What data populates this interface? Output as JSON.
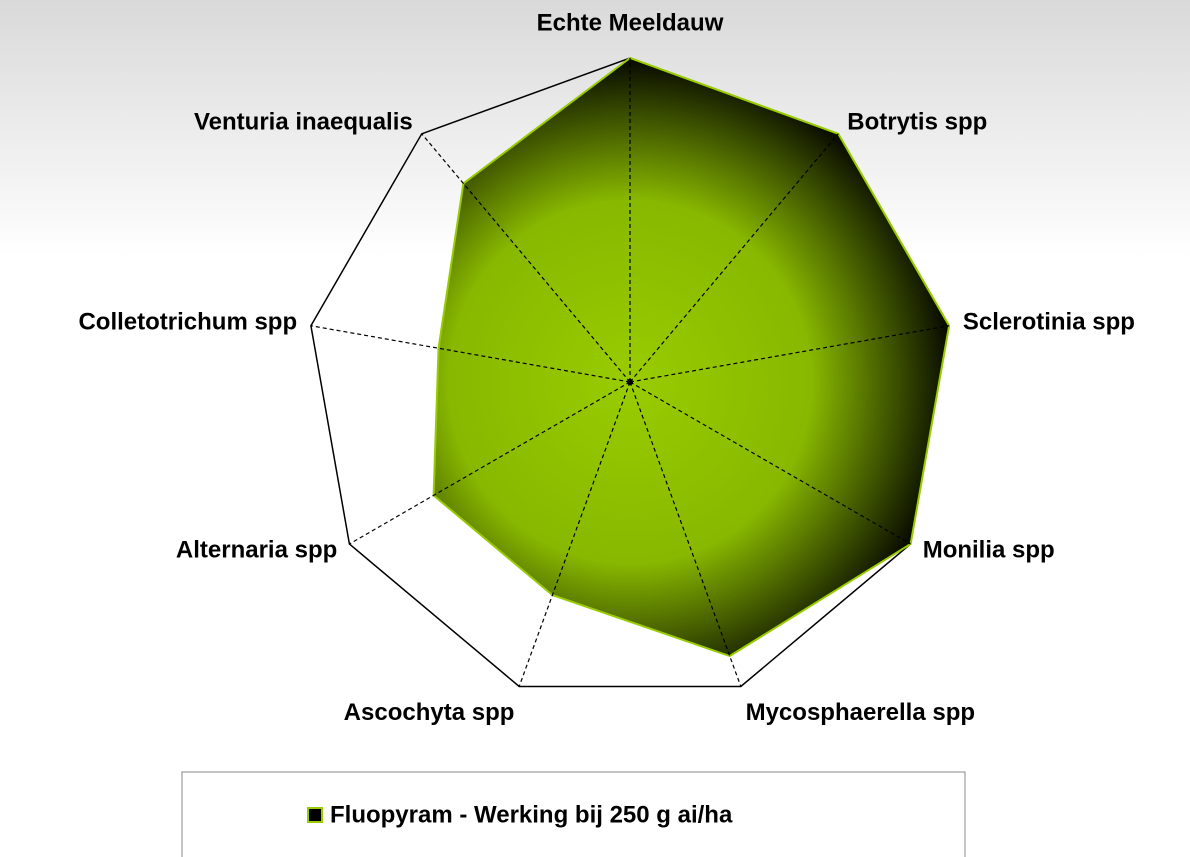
{
  "chart_data": {
    "type": "radar",
    "categories": [
      "Echte Meeldauw",
      "Botrytis spp",
      "Sclerotinia spp",
      "Monilia spp",
      "Mycosphaerella spp",
      "Ascochyta spp",
      "Alternaria spp",
      "Colletotrichum spp",
      "Venturia inaequalis"
    ],
    "series": [
      {
        "name": "Fluopyram - Werking bij 250 g ai/ha",
        "color": "#99cc00",
        "values": [
          100,
          100,
          100,
          100,
          90,
          70,
          70,
          60,
          80
        ]
      }
    ],
    "rlim": [
      0,
      100
    ],
    "legend": "bottom"
  }
}
